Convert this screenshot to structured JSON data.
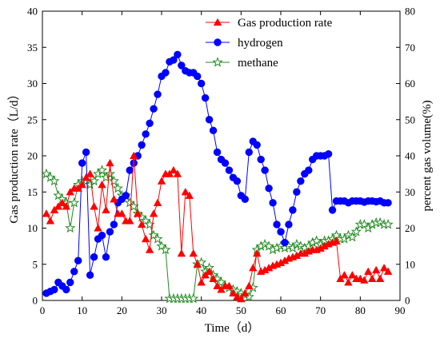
{
  "chart_data": {
    "type": "line",
    "xlabel": "Time（d）",
    "ylabel_left": "Gas production rate（L/d）",
    "ylabel_right": "percent gas volume(%)",
    "xlim": [
      0,
      90
    ],
    "ylim_left": [
      0,
      40
    ],
    "ylim_right": [
      0,
      80
    ],
    "x_ticks": [
      0,
      10,
      20,
      30,
      40,
      50,
      60,
      70,
      80,
      90
    ],
    "y_left_ticks": [
      0,
      5,
      10,
      15,
      20,
      25,
      30,
      35,
      40
    ],
    "y_right_ticks": [
      0,
      10,
      20,
      30,
      40,
      50,
      60,
      70,
      80
    ],
    "grid": false,
    "legend_position": "top-right",
    "series": [
      {
        "name": "Gas production rate",
        "axis": "left",
        "color": "#ff0000",
        "marker": "triangle",
        "x": [
          1,
          2,
          3,
          4,
          5,
          6,
          7,
          8,
          9,
          10,
          11,
          12,
          13,
          14,
          15,
          16,
          17,
          18,
          19,
          20,
          21,
          22,
          23,
          24,
          25,
          26,
          27,
          28,
          29,
          30,
          31,
          32,
          33,
          34,
          35,
          36,
          37,
          38,
          39,
          40,
          41,
          42,
          43,
          44,
          45,
          46,
          47,
          48,
          49,
          50,
          51,
          52,
          53,
          54,
          55,
          56,
          57,
          58,
          59,
          60,
          61,
          62,
          63,
          64,
          65,
          66,
          67,
          68,
          69,
          70,
          71,
          72,
          73,
          74,
          75,
          76,
          77,
          78,
          79,
          80,
          81,
          82,
          83,
          84,
          85,
          86,
          87
        ],
        "values": [
          12,
          11,
          12.5,
          13,
          13.5,
          13,
          15,
          15.5,
          15.5,
          16,
          17,
          17.5,
          13,
          10,
          16,
          12.5,
          19,
          14,
          12,
          12,
          11,
          11,
          20,
          12,
          10.5,
          8.5,
          7,
          12,
          13.5,
          16.5,
          17.5,
          17.5,
          18,
          17.5,
          6.5,
          15,
          14.5,
          6.5,
          5,
          2.5,
          3.5,
          4,
          3,
          2,
          1.5,
          2,
          2,
          1,
          0.5,
          0.2,
          1,
          2,
          4.5,
          6.5,
          4,
          4.2,
          4.5,
          4.8,
          5,
          5.2,
          5.5,
          5.8,
          6,
          6.2,
          6.5,
          6.5,
          6.8,
          7,
          7,
          7.2,
          7.5,
          7.8,
          8,
          8.2,
          3,
          3.5,
          2.5,
          3.5,
          3,
          3,
          2.8,
          4,
          3,
          4.2,
          3,
          4.5,
          4
        ],
        "display": "drawn"
      },
      {
        "name": "hydrogen",
        "axis": "right",
        "color": "#0000ff",
        "marker": "circle",
        "x": [
          1,
          2,
          3,
          4,
          5,
          6,
          7,
          8,
          9,
          10,
          11,
          12,
          13,
          14,
          15,
          16,
          17,
          18,
          19,
          20,
          21,
          22,
          23,
          24,
          25,
          26,
          27,
          28,
          29,
          30,
          31,
          32,
          33,
          34,
          35,
          36,
          37,
          38,
          39,
          40,
          41,
          42,
          43,
          44,
          45,
          46,
          47,
          48,
          49,
          50,
          51,
          52,
          53,
          54,
          55,
          56,
          57,
          58,
          59,
          60,
          61,
          62,
          63,
          64,
          65,
          66,
          67,
          68,
          69,
          70,
          71,
          72,
          73,
          74,
          75,
          76,
          77,
          78,
          79,
          80,
          81,
          82,
          83,
          84,
          85,
          86,
          87
        ],
        "values": [
          2,
          2.5,
          3,
          5,
          4,
          3,
          5,
          8,
          11,
          38,
          41,
          7,
          12,
          17,
          18,
          12,
          19,
          21,
          27,
          28,
          29,
          36,
          38,
          40,
          43,
          46,
          49,
          53,
          57,
          62,
          63,
          66,
          66.5,
          68,
          65,
          63.5,
          63,
          63,
          62,
          60,
          56,
          50,
          47,
          41,
          39,
          38,
          36,
          34,
          33,
          29,
          28,
          41,
          44,
          43,
          39,
          36,
          31,
          27,
          21,
          19,
          16,
          21,
          25,
          30,
          33,
          35,
          36,
          39,
          40,
          40,
          40,
          40.5,
          25,
          27.5,
          27.5,
          27.5,
          27,
          27.5,
          27.5,
          27.5,
          27.2,
          27.5,
          27.5,
          27.3,
          27.5,
          27,
          27
        ],
        "display": "drawn"
      },
      {
        "name": "methane",
        "axis": "right",
        "color": "#228b22",
        "marker": "star",
        "x": [
          1,
          2,
          3,
          4,
          5,
          6,
          7,
          8,
          9,
          10,
          11,
          12,
          13,
          14,
          15,
          16,
          17,
          18,
          19,
          20,
          21,
          22,
          23,
          24,
          25,
          26,
          27,
          28,
          29,
          30,
          31,
          32,
          33,
          34,
          35,
          36,
          37,
          38,
          39,
          40,
          41,
          42,
          43,
          44,
          45,
          46,
          47,
          48,
          49,
          50,
          51,
          52,
          53,
          54,
          55,
          56,
          57,
          58,
          59,
          60,
          61,
          62,
          63,
          64,
          65,
          66,
          67,
          68,
          69,
          70,
          71,
          72,
          73,
          74,
          75,
          76,
          77,
          78,
          79,
          80,
          81,
          82,
          83,
          84,
          85,
          86,
          87
        ],
        "values": [
          35,
          34,
          33,
          29,
          28,
          27,
          20,
          27,
          32,
          33,
          33,
          32,
          33,
          35,
          36,
          34,
          35,
          33,
          31,
          29,
          29,
          27,
          26,
          24,
          23,
          22,
          21,
          18,
          17,
          15,
          14,
          0.5,
          0.5,
          0.5,
          0.5,
          0.5,
          0.5,
          0.5,
          10,
          10.5,
          8,
          9,
          7,
          6,
          5,
          4,
          3.5,
          3,
          2.5,
          2,
          1.5,
          1,
          3.5,
          14,
          15,
          15.5,
          15,
          14,
          14.5,
          15,
          14.5,
          15,
          14.5,
          15.5,
          15,
          14.5,
          15,
          16,
          16.5,
          15.5,
          16.5,
          16.5,
          17,
          18,
          17,
          17,
          18,
          17.5,
          19,
          21,
          21,
          20,
          21,
          21.5,
          21.5,
          21,
          21
        ],
        "display": "drawn"
      }
    ]
  }
}
